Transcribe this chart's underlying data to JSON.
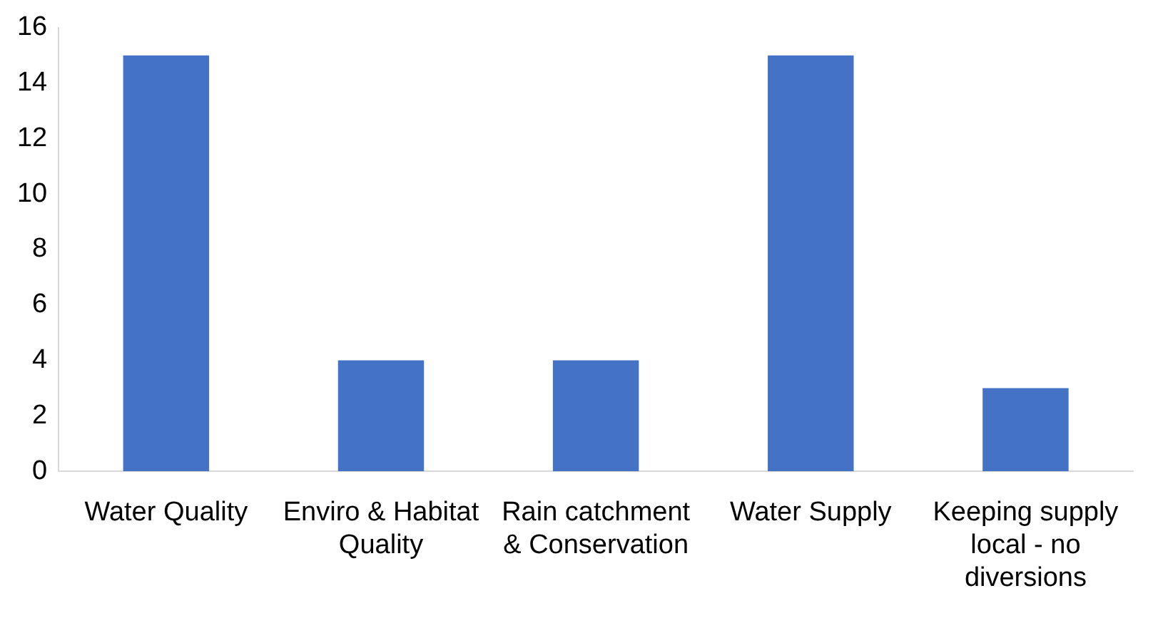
{
  "chart_data": {
    "type": "bar",
    "categories": [
      "Water Quality",
      "Enviro & Habitat Quality",
      "Rain catchment & Conservation",
      "Water Supply",
      "Keeping supply local - no diversions"
    ],
    "values": [
      15,
      4,
      4,
      15,
      3
    ],
    "color": "#4472c4",
    "ylim": [
      0,
      16
    ],
    "yticks": [
      0,
      2,
      4,
      6,
      8,
      10,
      12,
      14,
      16
    ],
    "grid": false
  }
}
